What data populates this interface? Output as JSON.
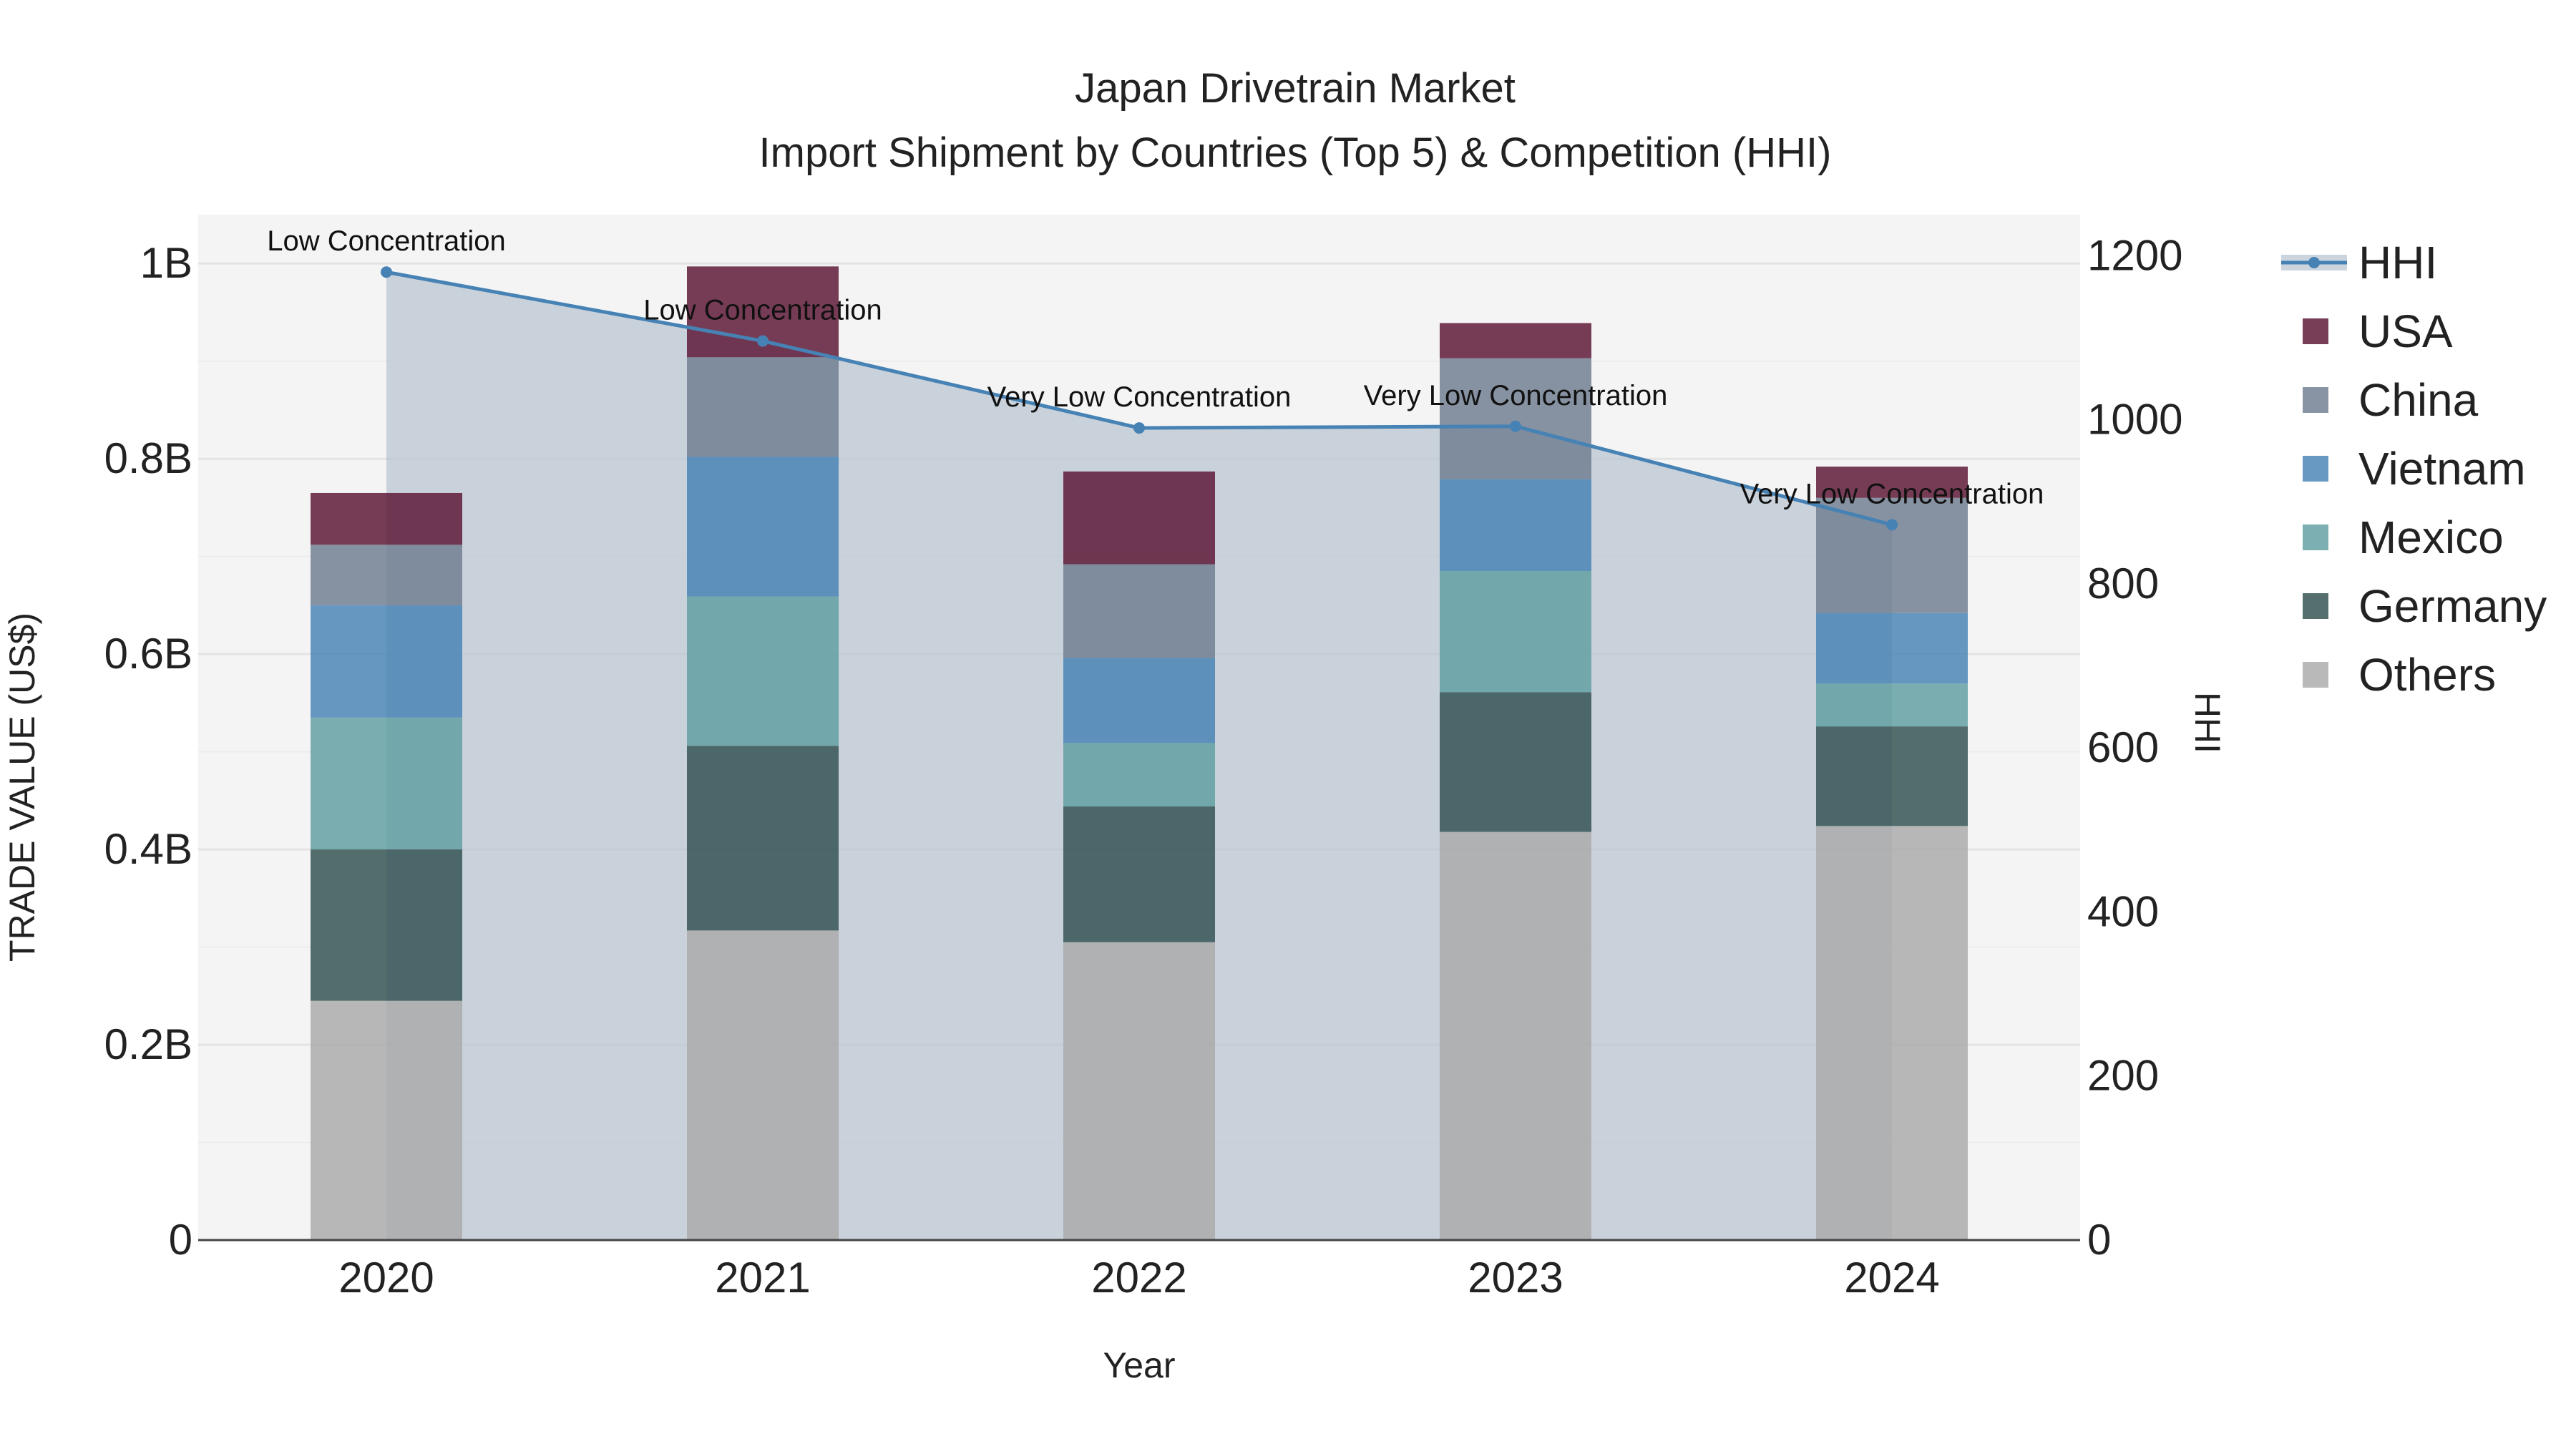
{
  "chart_data": {
    "type": "bar",
    "title": "Japan Drivetrain Market",
    "subtitle": "Import Shipment by Countries (Top 5) & Competition (HHI)",
    "xlabel": "Year",
    "ylabel": "TRADE VALUE (US$)",
    "y2label": "HHI",
    "categories": [
      "2020",
      "2021",
      "2022",
      "2023",
      "2024"
    ],
    "ylim": [
      0,
      1050000000
    ],
    "y2lim": [
      0,
      1250
    ],
    "y_ticks": [
      0,
      200000000,
      400000000,
      600000000,
      800000000,
      1000000000
    ],
    "y_tick_labels": [
      "0",
      "0.2B",
      "0.4B",
      "0.6B",
      "0.8B",
      "1B"
    ],
    "y2_ticks": [
      0,
      200,
      400,
      600,
      800,
      1000,
      1200
    ],
    "y2_tick_labels": [
      "0",
      "200",
      "400",
      "600",
      "800",
      "1000",
      "1200"
    ],
    "stack_order_bottom_to_top": [
      "Others",
      "Germany",
      "Mexico",
      "Vietnam",
      "China",
      "USA"
    ],
    "series": [
      {
        "name": "USA",
        "color": "#5c1332",
        "values": [
          53000000,
          93000000,
          95000000,
          36000000,
          32000000
        ]
      },
      {
        "name": "China",
        "color": "#6e7d8f",
        "values": [
          62000000,
          102000000,
          96000000,
          124000000,
          118000000
        ]
      },
      {
        "name": "Vietnam",
        "color": "#4682b4",
        "values": [
          115000000,
          143000000,
          87000000,
          94000000,
          72000000
        ]
      },
      {
        "name": "Mexico",
        "color": "#5f9ea0",
        "values": [
          135000000,
          153000000,
          65000000,
          124000000,
          44000000
        ]
      },
      {
        "name": "Germany",
        "color": "#2f4f4f",
        "values": [
          155000000,
          189000000,
          139000000,
          143000000,
          102000000
        ]
      },
      {
        "name": "Others",
        "color": "#a9a9a9",
        "values": [
          245000000,
          317000000,
          305000000,
          418000000,
          424000000
        ]
      }
    ],
    "hhi": {
      "name": "HHI",
      "color": "#4682b4",
      "values": [
        1180,
        1096,
        990,
        992,
        872
      ],
      "annotations": [
        "Low Concentration",
        "Low Concentration",
        "Very Low Concentration",
        "Very Low Concentration",
        "Very Low Concentration"
      ]
    },
    "legend": [
      "HHI",
      "USA",
      "China",
      "Vietnam",
      "Mexico",
      "Germany",
      "Others"
    ],
    "legend_position": "right",
    "background_color": "#f4f4f4",
    "grid": true
  }
}
